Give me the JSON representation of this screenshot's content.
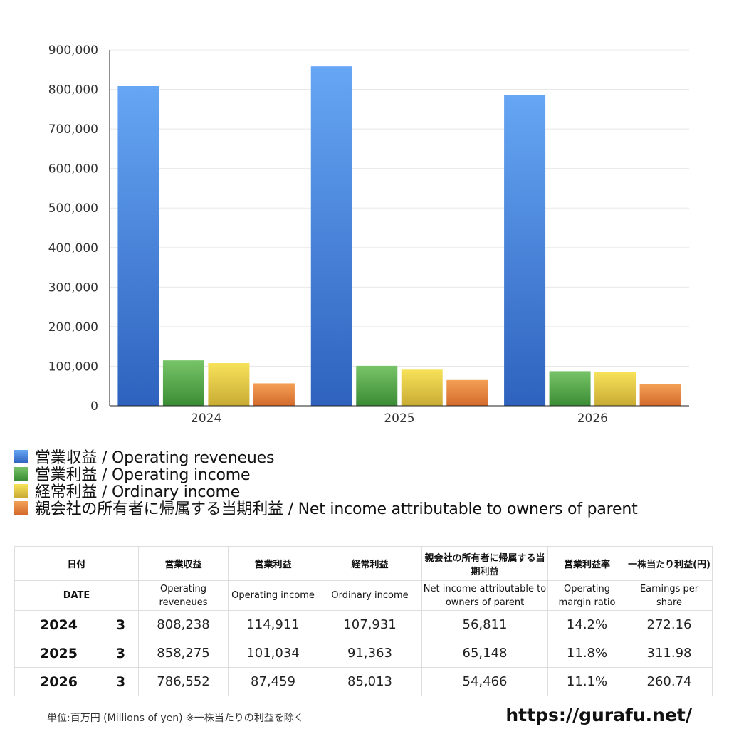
{
  "chart_data": {
    "type": "bar",
    "categories": [
      "2024",
      "2025",
      "2026"
    ],
    "ylim": [
      0,
      900000
    ],
    "yticks": [
      "0",
      "100,000",
      "200,000",
      "300,000",
      "400,000",
      "500,000",
      "600,000",
      "700,000",
      "800,000",
      "900,000"
    ],
    "grid": true,
    "legend_position": "bottom-left",
    "series": [
      {
        "name": "営業収益 / Operating reveneues",
        "values": [
          808238,
          858275,
          786552
        ],
        "color_top": "#66a6f4",
        "color_bottom": "#2e62be"
      },
      {
        "name": "営業利益 / Operating income",
        "values": [
          114911,
          101034,
          87459
        ],
        "color_top": "#78c468",
        "color_bottom": "#3a8c34"
      },
      {
        "name": "経常利益 / Ordinary income",
        "values": [
          107931,
          91363,
          85013
        ],
        "color_top": "#f7e25a",
        "color_bottom": "#c9ab34"
      },
      {
        "name": "親会社の所有者に帰属する当期利益 / Net income attributable to owners of parent",
        "values": [
          56811,
          65148,
          54466
        ],
        "color_top": "#f3a055",
        "color_bottom": "#d46a2c"
      }
    ]
  },
  "table": {
    "headers_ja": [
      "日付",
      "",
      "営業収益",
      "営業利益",
      "経常利益",
      "親会社の所有者に帰属する当期利益",
      "営業利益率",
      "一株当たり利益(円)"
    ],
    "headers_en": [
      "DATE",
      "",
      "Operating reveneues",
      "Operating income",
      "Ordinary income",
      "Net income attributable to owners of parent",
      "Operating margin ratio",
      "Earnings per share"
    ],
    "rows": [
      [
        "2024",
        "3",
        "808,238",
        "114,911",
        "107,931",
        "56,811",
        "14.2%",
        "272.16"
      ],
      [
        "2025",
        "3",
        "858,275",
        "101,034",
        "91,363",
        "65,148",
        "11.8%",
        "311.98"
      ],
      [
        "2026",
        "3",
        "786,552",
        "87,459",
        "85,013",
        "54,466",
        "11.1%",
        "260.74"
      ]
    ]
  },
  "footnote": "単位:百万円 (Millions of yen) ※一株当たりの利益を除く",
  "site_url": "https://gurafu.net/"
}
